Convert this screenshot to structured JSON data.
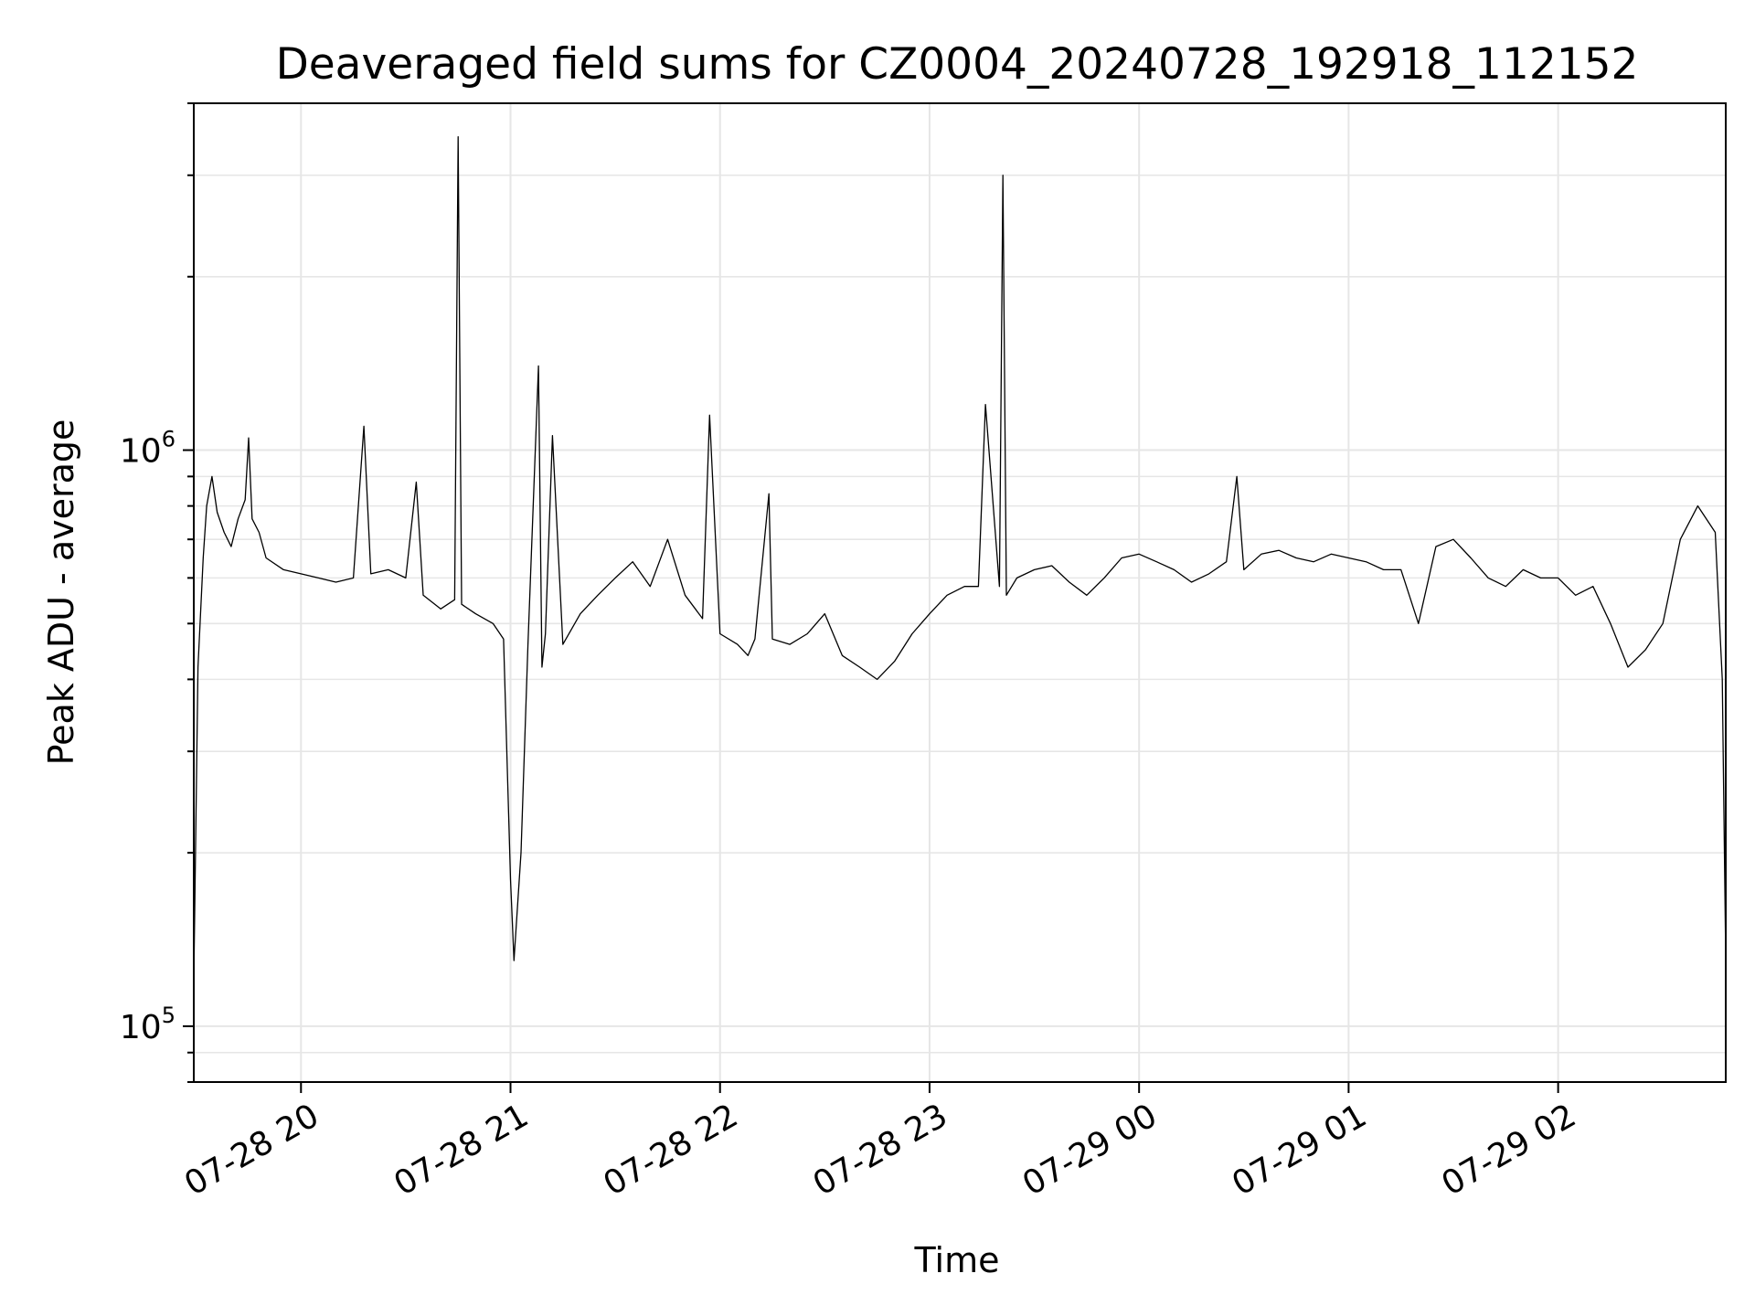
{
  "chart_data": {
    "type": "line",
    "title": "Deaveraged field sums for CZ0004_20240728_192918_112152",
    "xlabel": "Time",
    "ylabel": "Peak ADU - average",
    "yscale": "log",
    "ylim": [
      80000,
      4000000
    ],
    "xlim": [
      "2024-07-28 19:29:18",
      "2024-07-29 02:48:00"
    ],
    "grid": true,
    "line_color": "#000000",
    "grid_color": "#e6e6e6",
    "x_ticks": [
      {
        "value": "2024-07-28 20:00",
        "label": "07-28 20"
      },
      {
        "value": "2024-07-28 21:00",
        "label": "07-28 21"
      },
      {
        "value": "2024-07-28 22:00",
        "label": "07-28 22"
      },
      {
        "value": "2024-07-28 23:00",
        "label": "07-28 23"
      },
      {
        "value": "2024-07-29 00:00",
        "label": "07-29 00"
      },
      {
        "value": "2024-07-29 01:00",
        "label": "07-29 01"
      },
      {
        "value": "2024-07-29 02:00",
        "label": "07-29 02"
      }
    ],
    "y_ticks": [
      {
        "value": 100000,
        "base": "10",
        "exp": "5"
      },
      {
        "value": 1000000,
        "base": "10",
        "exp": "6"
      }
    ],
    "series": [
      {
        "x": [
          "2024-07-28 19:29:18",
          "2024-07-28 19:30:30",
          "2024-07-28 19:32:00",
          "2024-07-28 19:33:00",
          "2024-07-28 19:34:30",
          "2024-07-28 19:36:00",
          "2024-07-28 19:38:00",
          "2024-07-28 19:40:00",
          "2024-07-28 19:42:00",
          "2024-07-28 19:44:00",
          "2024-07-28 19:45:00",
          "2024-07-28 19:46:00",
          "2024-07-28 19:48:00",
          "2024-07-28 19:50:00",
          "2024-07-28 19:55:00",
          "2024-07-28 20:00:00",
          "2024-07-28 20:05:00",
          "2024-07-28 20:10:00",
          "2024-07-28 20:15:00",
          "2024-07-28 20:18:00",
          "2024-07-28 20:20:00",
          "2024-07-28 20:25:00",
          "2024-07-28 20:30:00",
          "2024-07-28 20:33:00",
          "2024-07-28 20:35:00",
          "2024-07-28 20:40:00",
          "2024-07-28 20:44:00",
          "2024-07-28 20:45:00",
          "2024-07-28 20:46:00",
          "2024-07-28 20:50:00",
          "2024-07-28 20:55:00",
          "2024-07-28 20:58:00",
          "2024-07-28 21:00:00",
          "2024-07-28 21:01:00",
          "2024-07-28 21:03:00",
          "2024-07-28 21:05:00",
          "2024-07-28 21:08:00",
          "2024-07-28 21:09:00",
          "2024-07-28 21:10:00",
          "2024-07-28 21:12:00",
          "2024-07-28 21:15:00",
          "2024-07-28 21:20:00",
          "2024-07-28 21:25:00",
          "2024-07-28 21:30:00",
          "2024-07-28 21:35:00",
          "2024-07-28 21:40:00",
          "2024-07-28 21:45:00",
          "2024-07-28 21:50:00",
          "2024-07-28 21:55:00",
          "2024-07-28 21:57:00",
          "2024-07-28 22:00:00",
          "2024-07-28 22:05:00",
          "2024-07-28 22:08:00",
          "2024-07-28 22:10:00",
          "2024-07-28 22:14:00",
          "2024-07-28 22:15:00",
          "2024-07-28 22:20:00",
          "2024-07-28 22:25:00",
          "2024-07-28 22:30:00",
          "2024-07-28 22:35:00",
          "2024-07-28 22:40:00",
          "2024-07-28 22:45:00",
          "2024-07-28 22:50:00",
          "2024-07-28 22:55:00",
          "2024-07-28 23:00:00",
          "2024-07-28 23:05:00",
          "2024-07-28 23:10:00",
          "2024-07-28 23:14:00",
          "2024-07-28 23:16:00",
          "2024-07-28 23:20:00",
          "2024-07-28 23:21:00",
          "2024-07-28 23:22:00",
          "2024-07-28 23:25:00",
          "2024-07-28 23:30:00",
          "2024-07-28 23:35:00",
          "2024-07-28 23:40:00",
          "2024-07-28 23:45:00",
          "2024-07-28 23:50:00",
          "2024-07-28 23:55:00",
          "2024-07-29 00:00:00",
          "2024-07-29 00:05:00",
          "2024-07-29 00:10:00",
          "2024-07-29 00:15:00",
          "2024-07-29 00:20:00",
          "2024-07-29 00:25:00",
          "2024-07-29 00:28:00",
          "2024-07-29 00:30:00",
          "2024-07-29 00:35:00",
          "2024-07-29 00:40:00",
          "2024-07-29 00:45:00",
          "2024-07-29 00:50:00",
          "2024-07-29 00:55:00",
          "2024-07-29 01:00:00",
          "2024-07-29 01:05:00",
          "2024-07-29 01:10:00",
          "2024-07-29 01:15:00",
          "2024-07-29 01:20:00",
          "2024-07-29 01:25:00",
          "2024-07-29 01:30:00",
          "2024-07-29 01:35:00",
          "2024-07-29 01:40:00",
          "2024-07-29 01:45:00",
          "2024-07-29 01:50:00",
          "2024-07-29 01:55:00",
          "2024-07-29 02:00:00",
          "2024-07-29 02:05:00",
          "2024-07-29 02:10:00",
          "2024-07-29 02:15:00",
          "2024-07-29 02:20:00",
          "2024-07-29 02:25:00",
          "2024-07-29 02:30:00",
          "2024-07-29 02:35:00",
          "2024-07-29 02:40:00",
          "2024-07-29 02:45:00",
          "2024-07-29 02:47:00",
          "2024-07-29 02:48:00"
        ],
        "y": [
          120000,
          420000,
          650000,
          800000,
          900000,
          780000,
          720000,
          680000,
          760000,
          820000,
          1050000,
          760000,
          720000,
          650000,
          620000,
          610000,
          600000,
          590000,
          600000,
          1100000,
          610000,
          620000,
          600000,
          880000,
          560000,
          530000,
          550000,
          3500000,
          540000,
          520000,
          500000,
          470000,
          180000,
          130000,
          200000,
          460000,
          1400000,
          420000,
          480000,
          1060000,
          460000,
          520000,
          560000,
          600000,
          640000,
          580000,
          700000,
          560000,
          510000,
          1150000,
          480000,
          460000,
          440000,
          470000,
          840000,
          470000,
          460000,
          480000,
          520000,
          440000,
          420000,
          400000,
          430000,
          480000,
          520000,
          560000,
          580000,
          580000,
          1200000,
          580000,
          3000000,
          560000,
          600000,
          620000,
          630000,
          590000,
          560000,
          600000,
          650000,
          660000,
          640000,
          620000,
          590000,
          610000,
          640000,
          900000,
          620000,
          660000,
          670000,
          650000,
          640000,
          660000,
          650000,
          640000,
          620000,
          620000,
          500000,
          680000,
          700000,
          650000,
          600000,
          580000,
          620000,
          600000,
          600000,
          560000,
          580000,
          500000,
          420000,
          450000,
          500000,
          700000,
          800000,
          720000,
          400000,
          130000
        ]
      }
    ]
  }
}
